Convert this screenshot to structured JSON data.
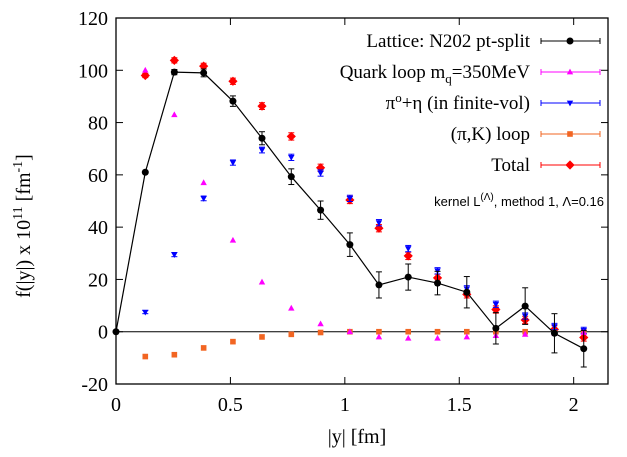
{
  "chart_data": {
    "type": "scatter",
    "xlabel": "|y| [fm]",
    "ylabel": "f(|y|) x 10^11 [fm^-1]",
    "xlim": [
      0,
      2.15
    ],
    "ylim": [
      -20,
      120
    ],
    "x_ticks": [
      0,
      0.5,
      1,
      1.5,
      2
    ],
    "x_tick_labels": [
      "0",
      "0.5",
      "1",
      "1.5",
      "2"
    ],
    "y_ticks": [
      -20,
      0,
      20,
      40,
      60,
      80,
      100,
      120
    ],
    "y_tick_labels": [
      "-20",
      "0",
      "20",
      "40",
      "60",
      "80",
      "100",
      "120"
    ],
    "zero_line": true,
    "grid": false,
    "legend_position": "top-right",
    "annotation": "kernel L(Λ), method 1, Λ=0.16",
    "series": [
      {
        "name": "Lattice: N202 pt-split",
        "color": "#000000",
        "marker": "circle",
        "connect": true,
        "x": [
          0,
          0.128,
          0.255,
          0.383,
          0.511,
          0.638,
          0.766,
          0.894,
          1.022,
          1.149,
          1.277,
          1.405,
          1.533,
          1.66,
          1.788,
          1.916,
          2.044
        ],
        "y": [
          0,
          61,
          99.3,
          99,
          88.2,
          74,
          59.3,
          46.5,
          33.3,
          17.9,
          20.9,
          18.6,
          15.1,
          1.3,
          9.8,
          -0.6,
          -6.5
        ],
        "err": [
          0,
          0.3,
          1.0,
          1.5,
          2.0,
          2.5,
          3.0,
          3.5,
          4.5,
          5.0,
          5.0,
          4.5,
          6.0,
          6.0,
          7.0,
          7.5,
          7.0
        ]
      },
      {
        "name": "Quark loop m_q=350MeV",
        "color": "#ff00ff",
        "marker": "triangle-up",
        "connect": false,
        "x": [
          0.128,
          0.255,
          0.383,
          0.511,
          0.638,
          0.766,
          0.894,
          1.022,
          1.149,
          1.277,
          1.405,
          1.533,
          1.66,
          1.788,
          1.916,
          2.044
        ],
        "y": [
          100,
          83,
          57,
          35,
          19,
          9,
          3,
          0,
          -2,
          -2.5,
          -2.5,
          -2,
          -1.5,
          -1,
          -0.6,
          -0.3
        ],
        "err": [
          0.4,
          0.4,
          0.4,
          0.4,
          0.4,
          0.4,
          0.4,
          0.4,
          0.4,
          0.4,
          0.4,
          0.4,
          0.4,
          0.4,
          0.4,
          0.4
        ]
      },
      {
        "name": "π⁰+η (in finite-vol)",
        "color": "#0000ff",
        "marker": "triangle-down",
        "connect": false,
        "x": [
          0.128,
          0.255,
          0.383,
          0.511,
          0.638,
          0.766,
          0.894,
          1.022,
          1.149,
          1.277,
          1.405,
          1.533,
          1.66,
          1.788,
          1.916,
          2.044
        ],
        "y": [
          7.5,
          29.5,
          51,
          64.7,
          69.5,
          66.7,
          60.7,
          51,
          41.7,
          31.8,
          23.3,
          16.4,
          10.5,
          6,
          2,
          0.5
        ],
        "err": [
          0.6,
          0.8,
          0.9,
          1.0,
          1.1,
          1.2,
          1.2,
          1.2,
          1.2,
          1.2,
          1.2,
          1.2,
          1.2,
          1.2,
          1.2,
          1.2
        ]
      },
      {
        "name": "(π,K) loop",
        "color": "#f26522",
        "marker": "square",
        "connect": false,
        "x": [
          0.128,
          0.255,
          0.383,
          0.511,
          0.638,
          0.766,
          0.894,
          1.022,
          1.149,
          1.277,
          1.405,
          1.533,
          1.66,
          1.788,
          1.916,
          2.044
        ],
        "y": [
          -9.5,
          -8.8,
          -6.2,
          -3.8,
          -2,
          -1,
          -0.3,
          0,
          0,
          0,
          0,
          0,
          0,
          0,
          0,
          0
        ],
        "err": [
          0.3,
          0.3,
          0.3,
          0.3,
          0.3,
          0.3,
          0.3,
          0.3,
          0.3,
          0.3,
          0.3,
          0.3,
          0.3,
          0.3,
          0.3,
          0.3
        ]
      },
      {
        "name": "Total",
        "color": "#ff0000",
        "marker": "diamond",
        "connect": false,
        "x": [
          0.128,
          0.255,
          0.383,
          0.511,
          0.638,
          0.766,
          0.894,
          1.022,
          1.149,
          1.277,
          1.405,
          1.533,
          1.66,
          1.788,
          1.916,
          2.044
        ],
        "y": [
          98,
          103.8,
          101.6,
          95.8,
          86.3,
          74.7,
          62.7,
          50.4,
          39.6,
          29,
          20.6,
          14.3,
          8.5,
          4.5,
          0.9,
          -2.2
        ],
        "err": [
          0.8,
          1.0,
          1.1,
          1.2,
          1.3,
          1.4,
          1.4,
          1.4,
          1.4,
          1.4,
          1.4,
          1.4,
          1.4,
          1.4,
          1.4,
          1.4
        ]
      }
    ]
  }
}
